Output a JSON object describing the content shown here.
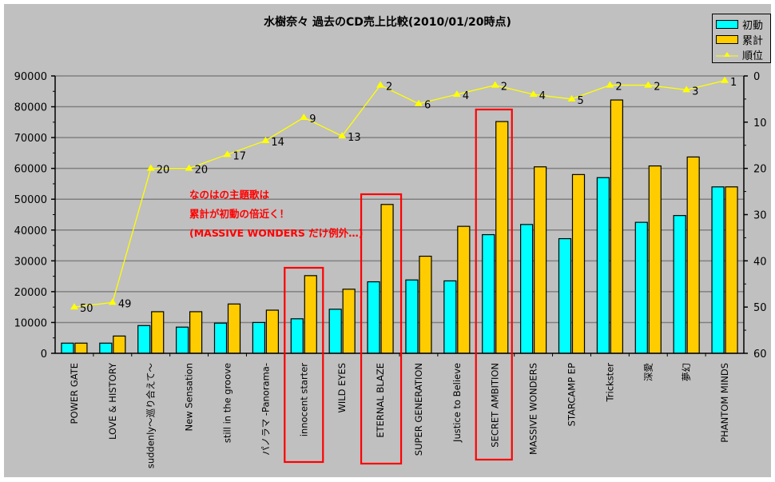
{
  "chart_data": {
    "type": "bar",
    "title": "水樹奈々 過去のCD売上比較(2010/01/20時点)",
    "xlabel": "",
    "ylabel": "",
    "y2label": "",
    "ylim": [
      0,
      90000
    ],
    "y2lim": [
      60,
      0
    ],
    "y2_inverted": true,
    "yticks": [
      "0",
      "10000",
      "20000",
      "30000",
      "40000",
      "50000",
      "60000",
      "70000",
      "80000",
      "90000"
    ],
    "y2ticks": [
      "0",
      "10",
      "20",
      "30",
      "40",
      "50",
      "60"
    ],
    "grid": true,
    "legend_position": "top-right",
    "categories": [
      "POWER GATE",
      "LOVE & HISTORY",
      "suddenly～巡り合えて～",
      "New Sensation",
      "still in the groove",
      "パノラマ -Panorama-",
      "innocent starter",
      "WILD EYES",
      "ETERNAL BLAZE",
      "SUPER GENERATION",
      "Justice to Believe",
      "SECRET AMBITION",
      "MASSIVE WONDERS",
      "STARCAMP EP",
      "Trickster",
      "深愛",
      "夢幻",
      "PHANTOM MINDS"
    ],
    "series": [
      {
        "name": "初動",
        "type": "bar",
        "axis": "left",
        "color": "#00ffff",
        "values": [
          3300,
          3300,
          9000,
          8500,
          9800,
          10000,
          11200,
          14300,
          23200,
          23800,
          23500,
          38500,
          41800,
          37200,
          57000,
          42500,
          44700,
          54000
        ]
      },
      {
        "name": "累計",
        "type": "bar",
        "axis": "left",
        "color": "#ffcc00",
        "values": [
          3300,
          5600,
          13500,
          13500,
          16000,
          14000,
          25200,
          20800,
          48300,
          31500,
          41200,
          75200,
          60500,
          58000,
          82200,
          60800,
          63700,
          54000
        ]
      },
      {
        "name": "順位",
        "type": "line",
        "axis": "right",
        "color": "#ffff00",
        "values": [
          50,
          49,
          20,
          20,
          17,
          14,
          9,
          13,
          2,
          6,
          4,
          2,
          4,
          5,
          2,
          2,
          3,
          1
        ]
      }
    ],
    "highlighted_categories": [
      "innocent starter",
      "ETERNAL BLAZE",
      "SECRET AMBITION"
    ],
    "annotations": [
      "なのはの主題歌は",
      "累計が初動の倍近く！",
      "(MASSIVE WONDERS だけ例外…)"
    ]
  },
  "title": "水樹奈々 過去のCD売上比較(2010/01/20時点)",
  "legend": [
    {
      "label": "初動",
      "color": "#00ffff",
      "kind": "bar"
    },
    {
      "label": "累計",
      "color": "#ffcc00",
      "kind": "bar"
    },
    {
      "label": "順位",
      "color": "#ffff00",
      "kind": "line"
    }
  ],
  "annotation": {
    "line1": "なのはの主題歌は",
    "line2": "累計が初動の倍近く！",
    "line3": "(MASSIVE WONDERS だけ例外…)"
  },
  "colors": {
    "background": "#c0c0c0",
    "gridline": "#808080",
    "highlight_box": "#ff0000"
  }
}
